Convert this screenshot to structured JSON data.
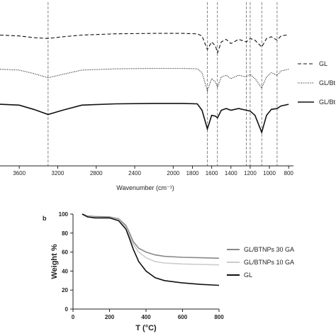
{
  "chart_data": [
    {
      "type": "line",
      "panel": "",
      "xlabel": "Wavenumber (cm⁻¹)",
      "ylabel": "",
      "xlim": [
        3800,
        750
      ],
      "x_reversed": true,
      "x_ticks": [
        3600,
        3200,
        2800,
        2400,
        2000,
        1600,
        1200,
        1000,
        800
      ],
      "x_tick_labels": [
        "3600",
        "3200",
        "2800",
        "2400",
        "2000",
        "1600",
        "1200",
        "1000",
        "800"
      ],
      "x_extra_ticks": [
        1800,
        1400
      ],
      "x_extra_tick_labels": [
        "1800",
        "1400"
      ],
      "reference_lines": [
        3300,
        1645,
        1540,
        1240,
        1200,
        1080,
        920
      ],
      "y_shown": false,
      "series": [
        {
          "name": "GL",
          "style": "dashed",
          "offset": 0.9,
          "points": [
            [
              3800,
              0.2
            ],
            [
              3600,
              0.3
            ],
            [
              3450,
              0.5
            ],
            [
              3300,
              0.6
            ],
            [
              3150,
              0.4
            ],
            [
              2950,
              0.2
            ],
            [
              2600,
              0.05
            ],
            [
              2200,
              0
            ],
            [
              1900,
              0
            ],
            [
              1750,
              0.05
            ],
            [
              1700,
              0.3
            ],
            [
              1645,
              1.9
            ],
            [
              1600,
              1.0
            ],
            [
              1560,
              1.5
            ],
            [
              1540,
              2.3
            ],
            [
              1500,
              1.0
            ],
            [
              1450,
              0.7
            ],
            [
              1400,
              1.2
            ],
            [
              1320,
              0.7
            ],
            [
              1240,
              1.0
            ],
            [
              1200,
              0.6
            ],
            [
              1150,
              0.8
            ],
            [
              1080,
              1.6
            ],
            [
              1030,
              0.6
            ],
            [
              980,
              0.4
            ],
            [
              920,
              0.8
            ],
            [
              880,
              0.3
            ],
            [
              800,
              0.15
            ]
          ]
        },
        {
          "name": "GL/BT",
          "style": "dotted",
          "offset": 3.5,
          "points": [
            [
              3800,
              0.1
            ],
            [
              3600,
              0.2
            ],
            [
              3450,
              0.6
            ],
            [
              3300,
              1.1
            ],
            [
              3150,
              0.7
            ],
            [
              2950,
              0.2
            ],
            [
              2600,
              0.05
            ],
            [
              2200,
              0
            ],
            [
              1900,
              0
            ],
            [
              1750,
              0.05
            ],
            [
              1700,
              0.5
            ],
            [
              1645,
              2.6
            ],
            [
              1600,
              1.2
            ],
            [
              1560,
              1.6
            ],
            [
              1540,
              2.2
            ],
            [
              1500,
              1.0
            ],
            [
              1450,
              0.8
            ],
            [
              1400,
              1.2
            ],
            [
              1320,
              0.8
            ],
            [
              1240,
              1.0
            ],
            [
              1200,
              0.7
            ],
            [
              1150,
              1.2
            ],
            [
              1080,
              2.3
            ],
            [
              1030,
              1.0
            ],
            [
              980,
              0.5
            ],
            [
              920,
              0.8
            ],
            [
              880,
              0.3
            ],
            [
              800,
              0.1
            ]
          ]
        },
        {
          "name": "GL/BT",
          "style": "solid",
          "offset": 6.1,
          "points": [
            [
              3800,
              0.1
            ],
            [
              3600,
              0.2
            ],
            [
              3450,
              0.7
            ],
            [
              3300,
              1.3
            ],
            [
              3150,
              0.8
            ],
            [
              2950,
              0.2
            ],
            [
              2600,
              0.05
            ],
            [
              2200,
              0
            ],
            [
              1900,
              0
            ],
            [
              1750,
              0.05
            ],
            [
              1700,
              0.8
            ],
            [
              1645,
              3.0
            ],
            [
              1600,
              1.4
            ],
            [
              1560,
              1.5
            ],
            [
              1540,
              1.7
            ],
            [
              1500,
              0.8
            ],
            [
              1450,
              0.6
            ],
            [
              1400,
              0.8
            ],
            [
              1320,
              0.6
            ],
            [
              1240,
              0.8
            ],
            [
              1200,
              0.9
            ],
            [
              1150,
              1.4
            ],
            [
              1080,
              3.4
            ],
            [
              1030,
              1.4
            ],
            [
              980,
              0.7
            ],
            [
              920,
              0.6
            ],
            [
              880,
              0.3
            ],
            [
              800,
              0.1
            ]
          ]
        }
      ],
      "legend": [
        "GL",
        "GL/Bt",
        "GL/Bt"
      ]
    },
    {
      "type": "line",
      "panel": "b",
      "xlabel": "T (°C)",
      "ylabel": "Weight %",
      "xlim": [
        0,
        800
      ],
      "ylim": [
        0,
        100
      ],
      "x_ticks": [
        0,
        200,
        400,
        600,
        800
      ],
      "y_ticks": [
        0,
        20,
        40,
        60,
        80,
        100
      ],
      "legend_position": "right",
      "series": [
        {
          "name": "GL/BTNPs 30 GA",
          "color": "#888888",
          "points": [
            [
              50,
              100
            ],
            [
              80,
              98
            ],
            [
              120,
              97.5
            ],
            [
              200,
              97
            ],
            [
              250,
              95
            ],
            [
              290,
              88
            ],
            [
              310,
              80
            ],
            [
              330,
              71
            ],
            [
              360,
              64
            ],
            [
              400,
              60
            ],
            [
              450,
              57
            ],
            [
              500,
              55.5
            ],
            [
              600,
              54.5
            ],
            [
              700,
              54
            ],
            [
              800,
              53.5
            ]
          ]
        },
        {
          "name": "GL/BTNPs 10 GA",
          "color": "#cccccc",
          "points": [
            [
              50,
              100
            ],
            [
              80,
              97.5
            ],
            [
              120,
              96.5
            ],
            [
              200,
              96
            ],
            [
              250,
              94
            ],
            [
              290,
              86
            ],
            [
              310,
              77
            ],
            [
              330,
              68
            ],
            [
              360,
              60
            ],
            [
              400,
              54
            ],
            [
              450,
              50
            ],
            [
              500,
              48.5
            ],
            [
              600,
              47.5
            ],
            [
              700,
              47
            ],
            [
              800,
              46.5
            ]
          ]
        },
        {
          "name": "GL",
          "color": "#111111",
          "points": [
            [
              50,
              100
            ],
            [
              80,
              97
            ],
            [
              120,
              96
            ],
            [
              200,
              96
            ],
            [
              250,
              93
            ],
            [
              290,
              84
            ],
            [
              310,
              74
            ],
            [
              330,
              63
            ],
            [
              360,
              50
            ],
            [
              400,
              40
            ],
            [
              450,
              33
            ],
            [
              500,
              30
            ],
            [
              600,
              27.5
            ],
            [
              700,
              26
            ],
            [
              800,
              25
            ]
          ]
        }
      ]
    }
  ]
}
